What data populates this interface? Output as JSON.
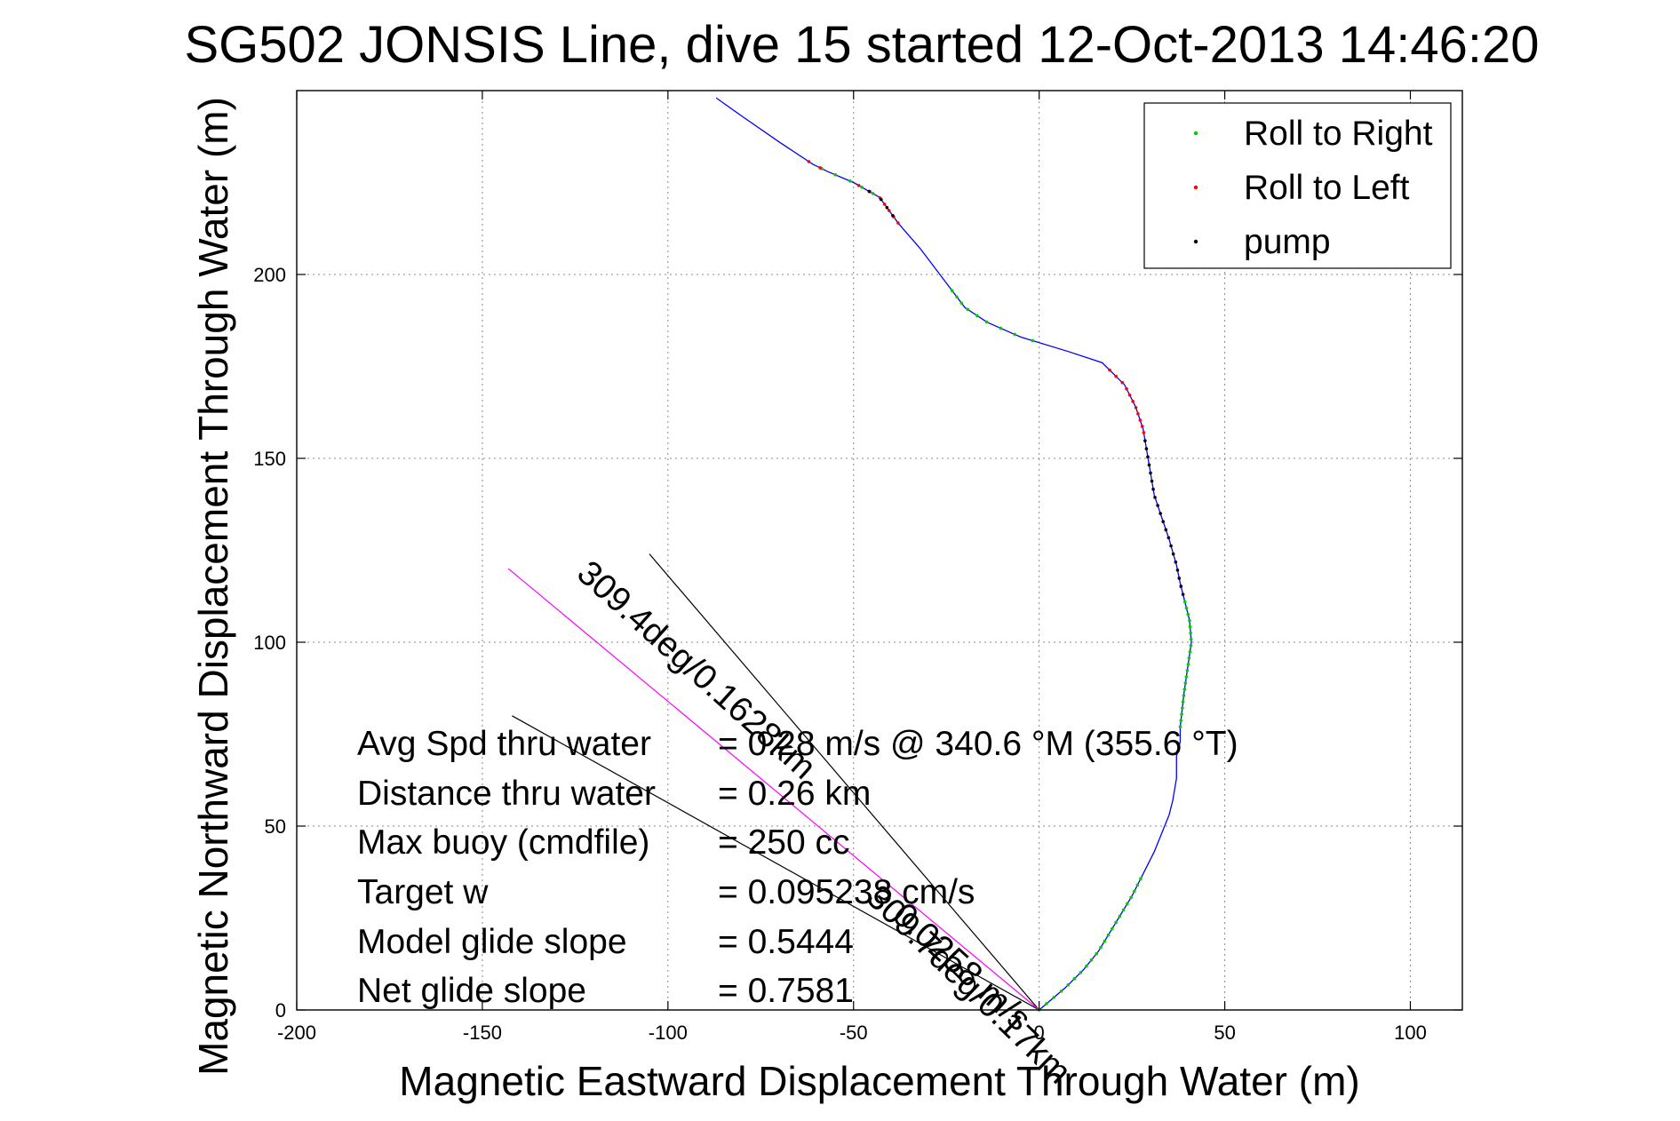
{
  "chart_data": {
    "type": "line",
    "title": "SG502 JONSIS Line, dive 15 started 12-Oct-2013 14:46:20",
    "xlabel": "Magnetic Eastward Displacement Through Water (m)",
    "ylabel": "Magnetic Northward Displacement Through Water (m)",
    "xlim": [
      -200,
      100
    ],
    "ylim": [
      0,
      250
    ],
    "xticks": [
      -200,
      -150,
      -100,
      -50,
      0,
      50,
      100
    ],
    "yticks": [
      0,
      50,
      100,
      150,
      200
    ],
    "xtick_labels": [
      "-200",
      "-150",
      "-100",
      "-50",
      "0",
      "50",
      "100"
    ],
    "ytick_labels": [
      "0",
      "50",
      "100",
      "150",
      "200"
    ],
    "grid": true,
    "legend_position": "top-right",
    "legend": [
      {
        "label": "Roll to Right",
        "color": "#00cc00"
      },
      {
        "label": "Roll to Left",
        "color": "#ff0000"
      },
      {
        "label": "pump",
        "color": "#000000"
      }
    ],
    "track": {
      "name": "",
      "color": "#0000ff",
      "points": [
        [
          0,
          0
        ],
        [
          7,
          6
        ],
        [
          12,
          11
        ],
        [
          16,
          16
        ],
        [
          19,
          21
        ],
        [
          22,
          26
        ],
        [
          25,
          31
        ],
        [
          28,
          37
        ],
        [
          31,
          43
        ],
        [
          33,
          48
        ],
        [
          35,
          53
        ],
        [
          36,
          57
        ],
        [
          37,
          63
        ],
        [
          37,
          69
        ],
        [
          38,
          73
        ],
        [
          38,
          77
        ],
        [
          39,
          86
        ],
        [
          40,
          93
        ],
        [
          41,
          100
        ],
        [
          40.5,
          106
        ],
        [
          39,
          112
        ],
        [
          38,
          116
        ],
        [
          37,
          121
        ],
        [
          35,
          128
        ],
        [
          33,
          134
        ],
        [
          31,
          140
        ],
        [
          30,
          146
        ],
        [
          29,
          152
        ],
        [
          28,
          158
        ],
        [
          26,
          164
        ],
        [
          23,
          170
        ],
        [
          17,
          176
        ],
        [
          8,
          179
        ],
        [
          -5,
          183
        ],
        [
          -14,
          187
        ],
        [
          -20,
          191
        ],
        [
          -26,
          199
        ],
        [
          -32,
          207
        ],
        [
          -38,
          214
        ],
        [
          -43,
          221
        ],
        [
          -50,
          225
        ],
        [
          -57,
          228
        ],
        [
          -61,
          230
        ],
        [
          -70,
          236
        ],
        [
          -80,
          243
        ],
        [
          -87,
          248
        ]
      ]
    },
    "marker_series": [
      {
        "name": "Roll to Right",
        "color": "#00cc00",
        "ranges": [
          [
            0,
            37
          ],
          [
            77,
            112
          ],
          [
            182,
            197
          ],
          [
            222,
            229
          ]
        ]
      },
      {
        "name": "Roll to Left",
        "color": "#ff0000",
        "ranges": [
          [
            157,
            175
          ],
          [
            214,
            225
          ],
          [
            229,
            231
          ]
        ]
      },
      {
        "name": "pump",
        "color": "#000000",
        "ranges": [
          [
            113,
            155
          ],
          [
            216,
            223
          ]
        ]
      }
    ],
    "rays": [
      {
        "label": "",
        "from": [
          0,
          0
        ],
        "to": [
          -105,
          124
        ],
        "color": "#000000"
      },
      {
        "label": "",
        "from": [
          0,
          0
        ],
        "to": [
          -142,
          80
        ],
        "color": "#000000"
      },
      {
        "label": "",
        "from": [
          0,
          0
        ],
        "to": [
          -143,
          120
        ],
        "color": "#ff00ff"
      }
    ],
    "ray_labels": [
      {
        "text": "309.7deg/0.17km",
        "anchor": [
          -47,
          30
        ],
        "angle_deg": -136
      },
      {
        "text": "309.4deg/0.1628km",
        "anchor": [
          -125,
          118
        ],
        "angle_deg": -138
      },
      {
        "text": "0.0258 m/s",
        "anchor": [
          -40,
          25
        ],
        "angle_deg": -138
      }
    ],
    "annotations": [
      {
        "key": "Avg Spd thru water",
        "value": "= 0.28 m/s @ 340.6 °M (355.6 °T)"
      },
      {
        "key": "Distance thru water",
        "value": "=  0.26 km"
      },
      {
        "key": "Max buoy (cmdfile)",
        "value": "= 250 cc"
      },
      {
        "key": "Target w",
        "value": "= 0.095238 cm/s"
      },
      {
        "key": "Model glide slope",
        "value": "= 0.5444"
      },
      {
        "key": "Net glide slope",
        "value": "= 0.7581"
      }
    ]
  }
}
